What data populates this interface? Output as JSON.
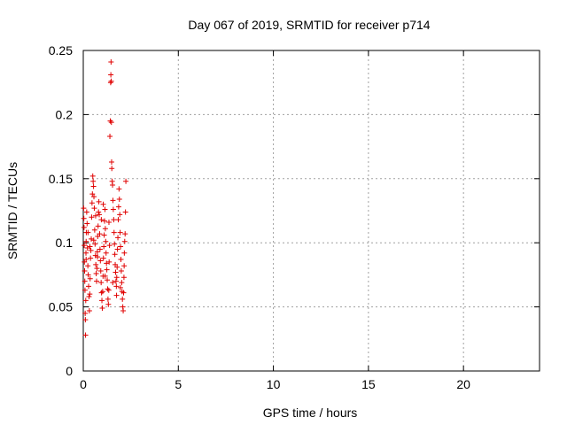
{
  "chart_data": {
    "type": "scatter",
    "title": "Day 067 of 2019, SRMTID for receiver p714",
    "xlabel": "GPS time / hours",
    "ylabel": "SRMTID / TECUs",
    "xlim": [
      0,
      24
    ],
    "ylim": [
      0,
      0.25
    ],
    "xticks": [
      0,
      5,
      10,
      15,
      20
    ],
    "xtick_labels": [
      "0",
      "5",
      "10",
      "15",
      "20"
    ],
    "yticks": [
      0,
      0.05,
      0.1,
      0.15,
      0.2,
      0.25
    ],
    "ytick_labels": [
      "0",
      "0.05",
      "0.1",
      "0.15",
      "0.2",
      "0.25"
    ],
    "grid": true,
    "marker": "plus",
    "color": "#e00000",
    "series": [
      {
        "name": "SRMTID",
        "points": [
          [
            0.02,
            0.127
          ],
          [
            0.03,
            0.119
          ],
          [
            0.04,
            0.112
          ],
          [
            0.05,
            0.098
          ],
          [
            0.06,
            0.085
          ],
          [
            0.07,
            0.078
          ],
          [
            0.08,
            0.07
          ],
          [
            0.09,
            0.063
          ],
          [
            0.1,
            0.045
          ],
          [
            0.11,
            0.04
          ],
          [
            0.12,
            0.028
          ],
          [
            0.13,
            0.055
          ],
          [
            0.14,
            0.092
          ],
          [
            0.15,
            0.101
          ],
          [
            0.16,
            0.108
          ],
          [
            0.18,
            0.124
          ],
          [
            0.2,
            0.115
          ],
          [
            0.22,
            0.096
          ],
          [
            0.24,
            0.082
          ],
          [
            0.26,
            0.075
          ],
          [
            0.28,
            0.066
          ],
          [
            0.3,
            0.058
          ],
          [
            0.32,
            0.047
          ],
          [
            0.34,
            0.06
          ],
          [
            0.36,
            0.072
          ],
          [
            0.38,
            0.088
          ],
          [
            0.4,
            0.094
          ],
          [
            0.42,
            0.103
          ],
          [
            0.44,
            0.12
          ],
          [
            0.46,
            0.131
          ],
          [
            0.48,
            0.138
          ],
          [
            0.5,
            0.152
          ],
          [
            0.52,
            0.148
          ],
          [
            0.54,
            0.144
          ],
          [
            0.56,
            0.136
          ],
          [
            0.58,
            0.127
          ],
          [
            0.6,
            0.11
          ],
          [
            0.62,
            0.099
          ],
          [
            0.64,
            0.09
          ],
          [
            0.66,
            0.083
          ],
          [
            0.68,
            0.076
          ],
          [
            0.7,
            0.07
          ],
          [
            0.72,
            0.08
          ],
          [
            0.74,
            0.093
          ],
          [
            0.76,
            0.105
          ],
          [
            0.78,
            0.113
          ],
          [
            0.8,
            0.124
          ],
          [
            0.82,
            0.132
          ],
          [
            0.84,
            0.122
          ],
          [
            0.86,
            0.107
          ],
          [
            0.88,
            0.095
          ],
          [
            0.9,
            0.086
          ],
          [
            0.92,
            0.078
          ],
          [
            0.94,
            0.069
          ],
          [
            0.96,
            0.061
          ],
          [
            0.98,
            0.055
          ],
          [
            1.0,
            0.049
          ],
          [
            1.02,
            0.062
          ],
          [
            1.04,
            0.074
          ],
          [
            1.06,
            0.088
          ],
          [
            1.08,
            0.097
          ],
          [
            1.1,
            0.106
          ],
          [
            1.12,
            0.117
          ],
          [
            1.14,
            0.126
          ],
          [
            1.16,
            0.111
          ],
          [
            1.18,
            0.101
          ],
          [
            1.2,
            0.092
          ],
          [
            1.22,
            0.084
          ],
          [
            1.24,
            0.079
          ],
          [
            1.26,
            0.071
          ],
          [
            1.28,
            0.064
          ],
          [
            1.3,
            0.056
          ],
          [
            1.32,
            0.052
          ],
          [
            1.34,
            0.063
          ],
          [
            1.36,
            0.085
          ],
          [
            1.38,
            0.098
          ],
          [
            1.4,
            0.183
          ],
          [
            1.42,
            0.195
          ],
          [
            1.44,
            0.225
          ],
          [
            1.45,
            0.231
          ],
          [
            1.46,
            0.241
          ],
          [
            1.47,
            0.226
          ],
          [
            1.48,
            0.194
          ],
          [
            1.49,
            0.163
          ],
          [
            1.5,
            0.158
          ],
          [
            1.52,
            0.148
          ],
          [
            1.54,
            0.145
          ],
          [
            1.56,
            0.133
          ],
          [
            1.58,
            0.126
          ],
          [
            1.6,
            0.118
          ],
          [
            1.62,
            0.108
          ],
          [
            1.64,
            0.099
          ],
          [
            1.66,
            0.091
          ],
          [
            1.68,
            0.083
          ],
          [
            1.7,
            0.077
          ],
          [
            1.72,
            0.07
          ],
          [
            1.74,
            0.066
          ],
          [
            1.76,
            0.073
          ],
          [
            1.78,
            0.081
          ],
          [
            1.8,
            0.095
          ],
          [
            1.82,
            0.104
          ],
          [
            1.84,
            0.118
          ],
          [
            1.86,
            0.128
          ],
          [
            1.88,
            0.142
          ],
          [
            1.9,
            0.134
          ],
          [
            1.92,
            0.122
          ],
          [
            1.94,
            0.108
          ],
          [
            1.96,
            0.097
          ],
          [
            1.98,
            0.087
          ],
          [
            2.0,
            0.078
          ],
          [
            2.02,
            0.069
          ],
          [
            2.04,
            0.062
          ],
          [
            2.06,
            0.056
          ],
          [
            2.08,
            0.05
          ],
          [
            2.1,
            0.047
          ],
          [
            2.12,
            0.061
          ],
          [
            2.14,
            0.073
          ],
          [
            2.16,
            0.092
          ],
          [
            2.18,
            0.101
          ],
          [
            2.2,
            0.107
          ],
          [
            2.22,
            0.124
          ],
          [
            2.24,
            0.148
          ],
          [
            0.15,
            0.087
          ],
          [
            0.35,
            0.097
          ],
          [
            0.55,
            0.102
          ],
          [
            0.75,
            0.089
          ],
          [
            0.95,
            0.118
          ],
          [
            1.15,
            0.074
          ],
          [
            1.35,
            0.116
          ],
          [
            1.55,
            0.069
          ],
          [
            1.75,
            0.059
          ],
          [
            1.95,
            0.065
          ],
          [
            2.15,
            0.082
          ],
          [
            0.25,
            0.108
          ],
          [
            0.65,
            0.121
          ],
          [
            1.05,
            0.13
          ]
        ]
      }
    ]
  }
}
